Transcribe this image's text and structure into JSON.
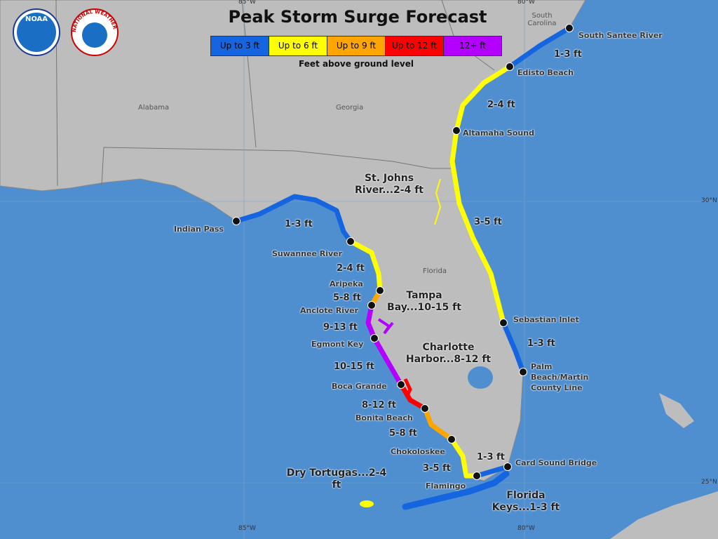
{
  "header": {
    "title": "Peak Storm Surge Forecast",
    "logos": [
      "NOAA",
      "NATIONAL WEATHER SERVICE"
    ]
  },
  "legend": {
    "items": [
      {
        "label": "Up to 3 ft",
        "color": "#1565e0"
      },
      {
        "label": "Up to 6 ft",
        "color": "#ffff00"
      },
      {
        "label": "Up to 9 ft",
        "color": "#ffa500"
      },
      {
        "label": "Up to 12 ft",
        "color": "#ff0000"
      },
      {
        "label": "12+ ft",
        "color": "#b300ff"
      }
    ],
    "caption": "Feet above ground level"
  },
  "states": [
    "South Carolina",
    "Alabama",
    "Georgia",
    "Florida"
  ],
  "grid_labels": [
    "85°W",
    "80°W",
    "85°W",
    "80°W",
    "30°N",
    "25°N"
  ],
  "locations": [
    "South Santee River",
    "Edisto Beach",
    "Altamaha Sound",
    "Sebastian Inlet",
    "Palm Beach/Martin County Line",
    "Card Sound Bridge",
    "Flamingo",
    "Chokoloskee",
    "Bonita Beach",
    "Boca Grande",
    "Egmont Key",
    "Anclote River",
    "Aripeka",
    "Suwannee River",
    "Indian Pass"
  ],
  "segment_labels": [
    "1-3 ft",
    "2-4 ft",
    "3-5 ft",
    "1-3 ft",
    "1-3 ft",
    "2-4 ft",
    "5-8 ft",
    "9-13 ft",
    "10-15 ft",
    "8-12 ft",
    "5-8 ft",
    "3-5 ft",
    "1-3 ft"
  ],
  "area_labels": [
    "St. Johns River...2-4 ft",
    "Tampa Bay...10-15 ft",
    "Charlotte Harbor...8-12 ft",
    "Dry Tortugas...2-4 ft",
    "Florida Keys...1-3 ft"
  ]
}
